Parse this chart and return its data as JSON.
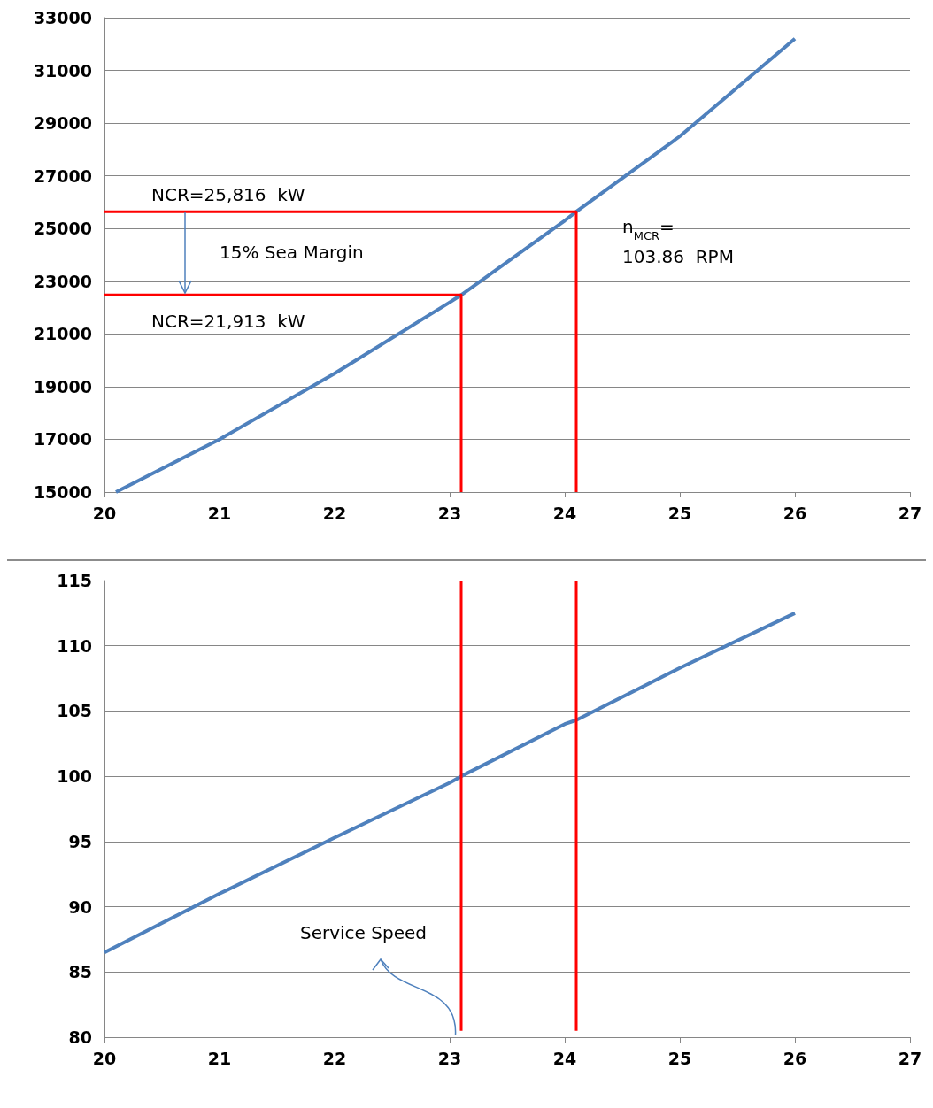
{
  "chart_data": [
    {
      "type": "line",
      "xlim": [
        20,
        27
      ],
      "xticks": [
        20,
        21,
        22,
        23,
        24,
        25,
        26,
        27
      ],
      "ylim": [
        15000,
        33000
      ],
      "yticks": [
        15000,
        17000,
        19000,
        21000,
        23000,
        25000,
        27000,
        29000,
        31000,
        33000
      ],
      "grid": "y",
      "series": [
        {
          "color": "#4f81bd",
          "x": [
            20.1,
            21,
            22,
            23,
            23.1,
            24,
            24.1,
            25,
            26
          ],
          "values": [
            15000,
            17000,
            19500,
            22200,
            22480,
            25300,
            25640,
            28500,
            32200
          ]
        },
        {
          "color": "#ff0000",
          "x": [
            20,
            23.1,
            23.1
          ],
          "values": [
            22480,
            22480,
            15000
          ]
        },
        {
          "color": "#ff0000",
          "x": [
            20,
            24.1,
            24.1
          ],
          "values": [
            25640,
            25640,
            15000
          ]
        }
      ],
      "annotations": [
        {
          "text": "NCR=25,816  kW",
          "x": 20.7,
          "y": 25640
        },
        "15% Sea Margin",
        {
          "text": "NCR=21,913  kW",
          "x": 20.7,
          "y": 22480
        },
        "n$_{MCR}$=\n103.86  RPM"
      ]
    },
    {
      "type": "line",
      "xlim": [
        20,
        27
      ],
      "xticks": [
        20,
        21,
        22,
        23,
        24,
        25,
        26,
        27
      ],
      "ylim": [
        80,
        115
      ],
      "yticks": [
        80,
        85,
        90,
        95,
        100,
        105,
        110,
        115
      ],
      "grid": "y",
      "series": [
        {
          "color": "#4f81bd",
          "x": [
            20,
            21,
            22,
            23,
            23.1,
            24,
            24.1,
            25,
            26
          ],
          "values": [
            86.5,
            91,
            95.3,
            99.5,
            100,
            104,
            104.3,
            108.3,
            112.5
          ]
        },
        {
          "color": "#ff0000",
          "x": [
            23.1,
            23.1
          ],
          "values": [
            80.5,
            115
          ]
        },
        {
          "color": "#ff0000",
          "x": [
            24.1,
            24.1
          ],
          "values": [
            80.5,
            115
          ]
        }
      ],
      "annotations": [
        "Service Speed"
      ]
    }
  ]
}
